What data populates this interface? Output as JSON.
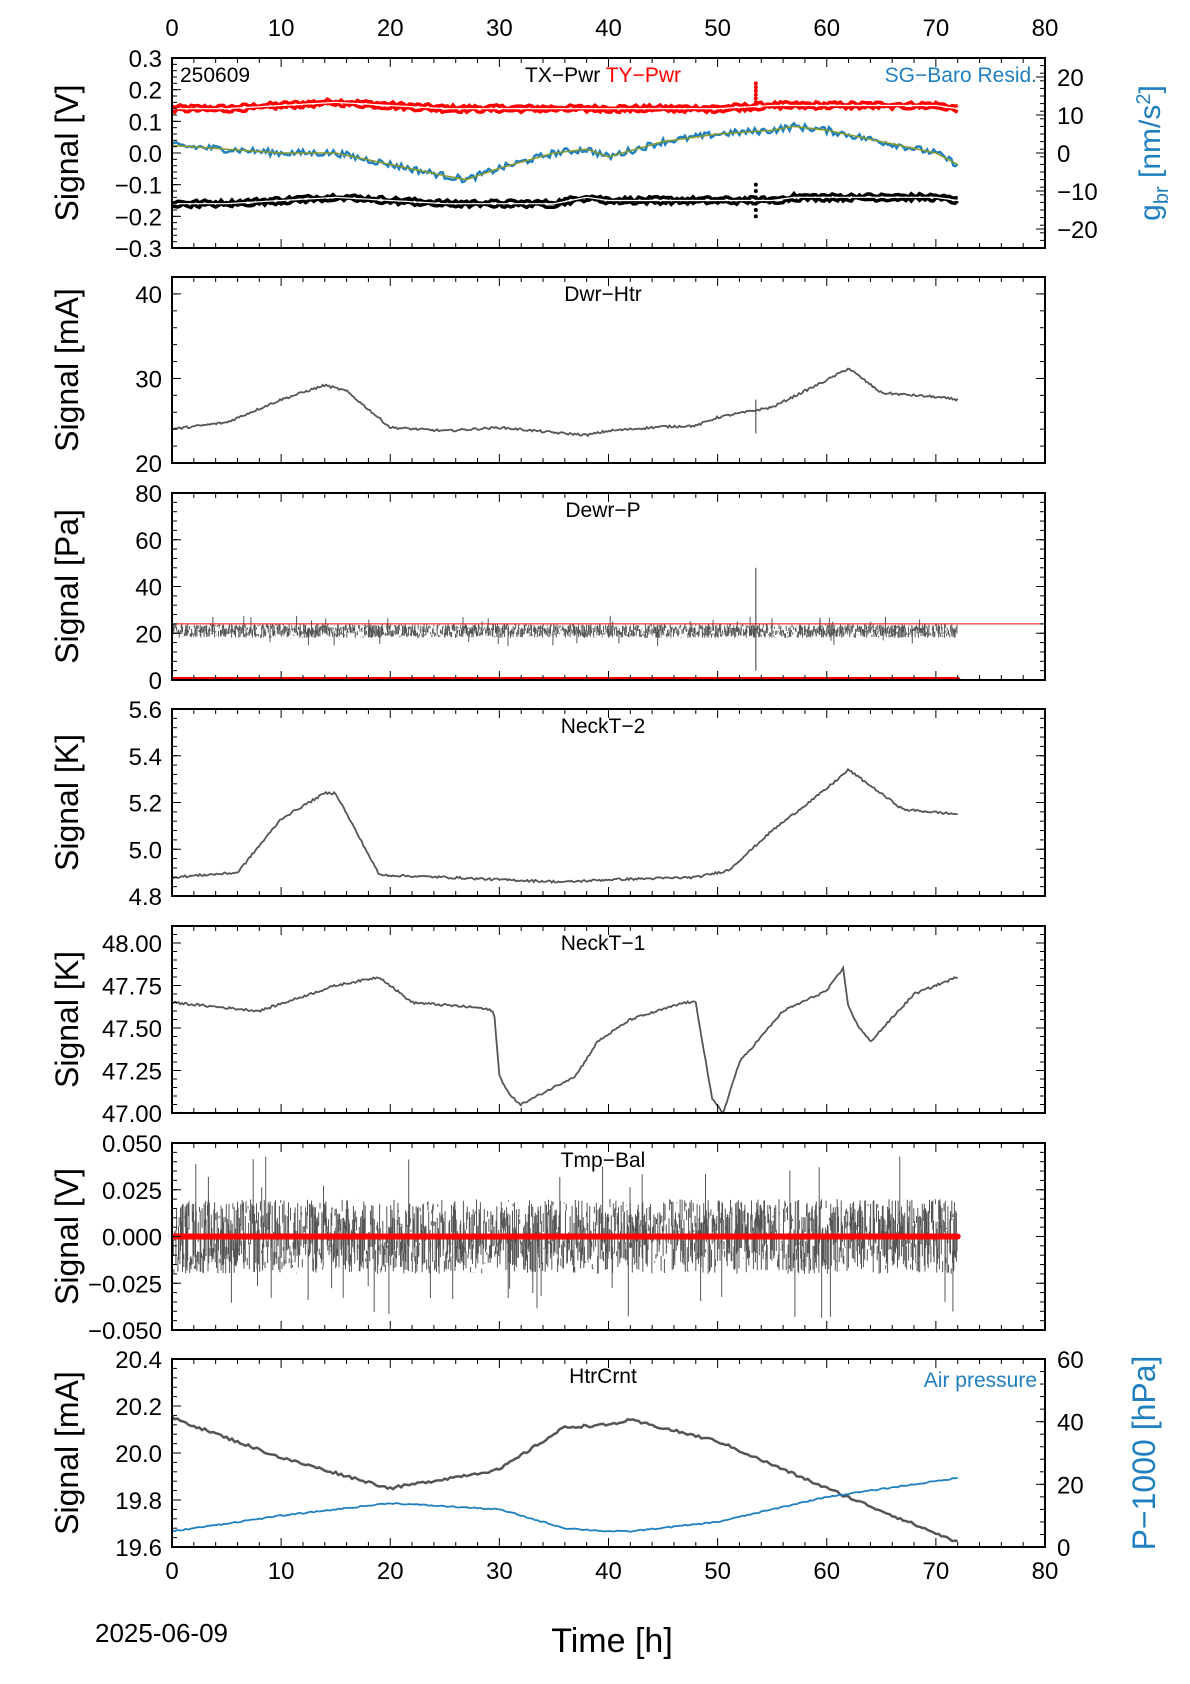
{
  "date_label": "2025-06-09",
  "x_axis": {
    "label": "Time [h]",
    "range": [
      0,
      80
    ],
    "ticks": [
      "0",
      "10",
      "20",
      "30",
      "40",
      "50",
      "60",
      "70",
      "80"
    ]
  },
  "chart_data": [
    {
      "type": "line",
      "title": "TX−Pwr",
      "title_extra": "TY−Pwr",
      "id_label": "250609",
      "right_label": "SG−Baro Resid.",
      "ylabel": "Signal [V]",
      "ylim": [
        -0.3,
        0.3
      ],
      "yticks": [
        "0.3",
        "0.2",
        "0.1",
        "0.0",
        "−0.1",
        "−0.2",
        "−0.3"
      ],
      "y2label": "g_br [nm/s²]",
      "y2lim": [
        -25,
        25
      ],
      "y2ticks": [
        "20",
        "10",
        "0",
        "−10",
        "−20"
      ],
      "colors": {
        "tx": "#000000",
        "ty": "#ff0000",
        "sg": "#1f7fbf",
        "sg_fit": "#8a9a2a"
      },
      "x": [
        0,
        5,
        10,
        15,
        20,
        25,
        27,
        30,
        35,
        38,
        40,
        45,
        50,
        55,
        57,
        60,
        65,
        70,
        72
      ],
      "series": [
        {
          "name": "TY−Pwr",
          "y2": false,
          "values": [
            0.14,
            0.14,
            0.15,
            0.16,
            0.15,
            0.14,
            0.14,
            0.14,
            0.14,
            0.14,
            0.14,
            0.14,
            0.14,
            0.15,
            0.15,
            0.15,
            0.15,
            0.15,
            0.14
          ]
        },
        {
          "name": "TX−Pwr",
          "y2": false,
          "values": [
            -0.16,
            -0.16,
            -0.15,
            -0.14,
            -0.15,
            -0.16,
            -0.16,
            -0.16,
            -0.16,
            -0.14,
            -0.15,
            -0.15,
            -0.15,
            -0.15,
            -0.14,
            -0.14,
            -0.14,
            -0.14,
            -0.15
          ]
        },
        {
          "name": "SG−Baro Resid.",
          "y2": true,
          "values": [
            2,
            1,
            0,
            0,
            -3,
            -6,
            -7,
            -4,
            0,
            1,
            -1,
            3,
            5,
            6,
            7,
            6,
            3,
            0,
            -3
          ]
        }
      ]
    },
    {
      "type": "line",
      "title": "Dwr−Htr",
      "ylabel": "Signal [mA]",
      "ylim": [
        20,
        42
      ],
      "yticks": [
        "40",
        "30",
        "20"
      ],
      "color": "#555555",
      "x": [
        0,
        5,
        10,
        14,
        16,
        20,
        25,
        30,
        35,
        38,
        40,
        45,
        48,
        50,
        55,
        60,
        62,
        65,
        70,
        72
      ],
      "values": [
        24,
        24.8,
        27.5,
        29.2,
        28.5,
        24.2,
        23.8,
        24.2,
        23.6,
        23.3,
        23.8,
        24.3,
        24.4,
        25.4,
        26.6,
        29.8,
        31.2,
        28.3,
        27.8,
        27.5
      ]
    },
    {
      "type": "line",
      "title": "Dewr−P",
      "ylabel": "Signal [Pa]",
      "ylim": [
        0,
        80
      ],
      "yticks": [
        "80",
        "60",
        "40",
        "20",
        "0"
      ],
      "color": "#555555",
      "reference_color": "#ff0000",
      "x": [
        0,
        72
      ],
      "values": [
        21,
        21
      ],
      "noise_band": 3,
      "reference_level": 24,
      "zero_level": 0,
      "spike": {
        "x": 53.5,
        "ymin": 4,
        "ymax": 48
      }
    },
    {
      "type": "line",
      "title": "NeckT−2",
      "ylabel": "Signal [K]",
      "ylim": [
        4.8,
        5.6
      ],
      "yticks": [
        "5.6",
        "5.4",
        "5.2",
        "5.0",
        "4.8"
      ],
      "color": "#555555",
      "x": [
        0,
        6,
        10,
        14,
        15,
        19,
        25,
        30,
        36,
        40,
        48,
        51,
        55,
        60,
        62,
        67,
        72
      ],
      "values": [
        4.88,
        4.9,
        5.13,
        5.24,
        5.24,
        4.89,
        4.88,
        4.87,
        4.86,
        4.87,
        4.88,
        4.91,
        5.08,
        5.26,
        5.34,
        5.17,
        5.15
      ]
    },
    {
      "type": "line",
      "title": "NeckT−1",
      "ylabel": "Signal [K]",
      "ylim": [
        47.0,
        48.1
      ],
      "yticks": [
        "48.00",
        "47.75",
        "47.50",
        "47.25",
        "47.00"
      ],
      "color": "#555555",
      "x": [
        0,
        8,
        15,
        19,
        22,
        28,
        29.5,
        30,
        31,
        32,
        37,
        39,
        42,
        47,
        48,
        49.5,
        50.5,
        52,
        56,
        60,
        61.5,
        62,
        63,
        64,
        68,
        72
      ],
      "values": [
        47.65,
        47.6,
        47.75,
        47.8,
        47.65,
        47.62,
        47.6,
        47.22,
        47.1,
        47.05,
        47.22,
        47.42,
        47.55,
        47.65,
        47.65,
        47.08,
        47.0,
        47.3,
        47.6,
        47.72,
        47.85,
        47.62,
        47.5,
        47.42,
        47.7,
        47.8
      ]
    },
    {
      "type": "line",
      "title": "Tmp−Bal",
      "ylabel": "Signal [V]",
      "ylim": [
        -0.05,
        0.05
      ],
      "yticks": [
        "0.050",
        "0.025",
        "0.000",
        "−0.025",
        "−0.050"
      ],
      "color": "#555555",
      "reference_color": "#ff0000",
      "x": [
        0,
        72
      ],
      "values": [
        0.0,
        0.0
      ],
      "noise_band": 0.02,
      "zero_level": 0
    },
    {
      "type": "line",
      "title": "HtrCrnt",
      "right_label": "Air pressure",
      "ylabel": "Signal [mA]",
      "ylim": [
        19.6,
        20.4
      ],
      "yticks": [
        "20.4",
        "20.2",
        "20.0",
        "19.8",
        "19.6"
      ],
      "y2label": "P−1000 [hPa]",
      "y2lim": [
        0,
        60
      ],
      "y2ticks": [
        "60",
        "40",
        "20",
        "0"
      ],
      "colors": {
        "signal": "#555555",
        "pressure": "#1f7fbf"
      },
      "x": [
        0,
        10,
        20,
        30,
        36,
        40,
        42,
        50,
        60,
        72
      ],
      "series": [
        {
          "name": "HtrCrnt",
          "y2": false,
          "values": [
            20.15,
            19.98,
            19.85,
            19.93,
            20.11,
            20.12,
            20.14,
            20.05,
            19.85,
            19.62
          ]
        },
        {
          "name": "Air pressure",
          "y2": true,
          "values": [
            5,
            10,
            14,
            12,
            6,
            5,
            5,
            8,
            16,
            22
          ]
        }
      ]
    }
  ]
}
